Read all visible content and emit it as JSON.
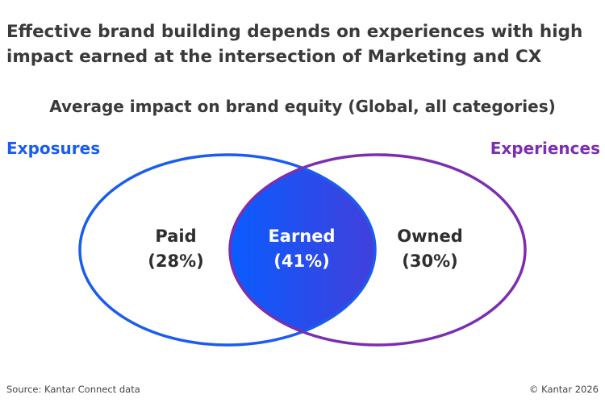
{
  "headline_line1": "Effective brand building depends on experiences with high",
  "headline_line2": "impact earned at the intersection of Marketing and CX",
  "subtitle": "Average impact on brand equity (Global, all categories)",
  "left_set_label": "Exposures",
  "right_set_label": "Experiences",
  "colors": {
    "left": "#1a5cf0",
    "right": "#7b2fb0",
    "overlap_start": "#0a5cff",
    "overlap_end": "#7a22b6",
    "text_dark": "#2e2e2e",
    "text_light": "#ffffff"
  },
  "regions": [
    {
      "id": "paid",
      "label": "Paid",
      "value": "(28%)"
    },
    {
      "id": "earned",
      "label": "Earned",
      "value": "(41%)"
    },
    {
      "id": "owned",
      "label": "Owned",
      "value": "(30%)"
    }
  ],
  "source": "Source: Kantar Connect data",
  "copyright": "© Kantar 2026"
}
